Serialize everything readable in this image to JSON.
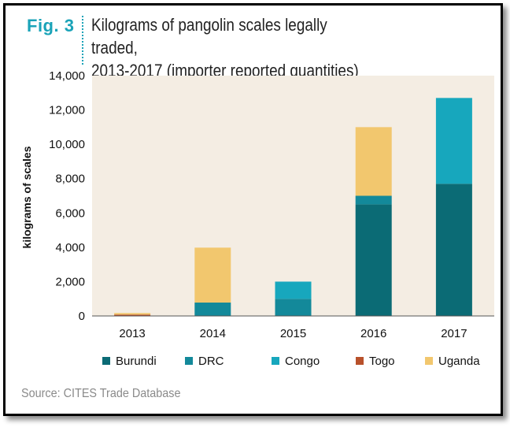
{
  "figure": {
    "label": "Fig. 3",
    "title_line1": "Kilograms of pangolin scales legally traded,",
    "title_line2": "2013-2017 (importer reported quantities)",
    "source": "Source: CITES Trade Database"
  },
  "chart_data": {
    "type": "bar",
    "stacked": true,
    "title": "Kilograms of pangolin scales legally traded, 2013-2017 (importer reported quantities)",
    "xlabel": "",
    "ylabel": "kilograms of scales",
    "categories": [
      "2013",
      "2014",
      "2015",
      "2016",
      "2017"
    ],
    "ylim": [
      0,
      14000
    ],
    "yticks": [
      0,
      2000,
      4000,
      6000,
      8000,
      10000,
      12000,
      14000
    ],
    "ytick_labels": [
      "0",
      "2,000",
      "4,000",
      "6,000",
      "8,000",
      "10,000",
      "12,000",
      "14,000"
    ],
    "grid": false,
    "legend_position": "bottom",
    "background_color": "#f4ede3",
    "series": [
      {
        "name": "Burundi",
        "color": "#0b6b75",
        "values": [
          0,
          0,
          0,
          6500,
          7700
        ]
      },
      {
        "name": "DRC",
        "color": "#13899a",
        "values": [
          0,
          780,
          1000,
          500,
          0
        ]
      },
      {
        "name": "Congo",
        "color": "#17a7bd",
        "values": [
          0,
          0,
          1000,
          0,
          5000
        ]
      },
      {
        "name": "Togo",
        "color": "#b8512b",
        "values": [
          80,
          0,
          0,
          0,
          0
        ]
      },
      {
        "name": "Uganda",
        "color": "#f2c76e",
        "values": [
          90,
          3200,
          0,
          4000,
          0
        ]
      }
    ]
  }
}
